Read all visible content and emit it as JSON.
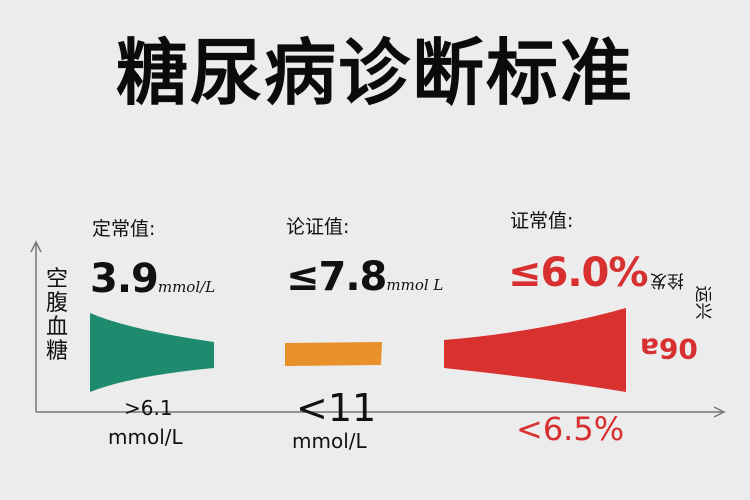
{
  "title": "糖尿病诊断标准",
  "ylabel_chars": [
    "空",
    "腹",
    "血",
    "糖"
  ],
  "colors": {
    "green": "#1e8a6e",
    "orange": "#e8902a",
    "red": "#d93030",
    "axis": "#777777"
  },
  "chart_data": {
    "type": "area",
    "title": "糖尿病诊断标准",
    "ylabel": "空腹血糖",
    "xlabel": "",
    "grid": false,
    "groups": [
      {
        "label": "定常值:",
        "main_value": "3.9",
        "main_unit": "mmol/L",
        "bottom_value": ">6.1",
        "bottom_unit": "mmol/L",
        "color": "#1e8a6e",
        "shape": "tapering"
      },
      {
        "label": "论证值:",
        "main_value": "≤7.8",
        "main_unit": "mmol L",
        "bottom_value": "<11",
        "bottom_unit": "mmol/L",
        "color": "#e8902a",
        "shape": "flat"
      },
      {
        "label": "证常值:",
        "main_value": "≤6.0%",
        "main_unit": "",
        "bottom_value": "<6.5%",
        "bottom_unit": "",
        "color": "#d93030",
        "shape": "widening"
      }
    ],
    "side_annotations": [
      "拴发",
      "运兴",
      "06a"
    ]
  }
}
